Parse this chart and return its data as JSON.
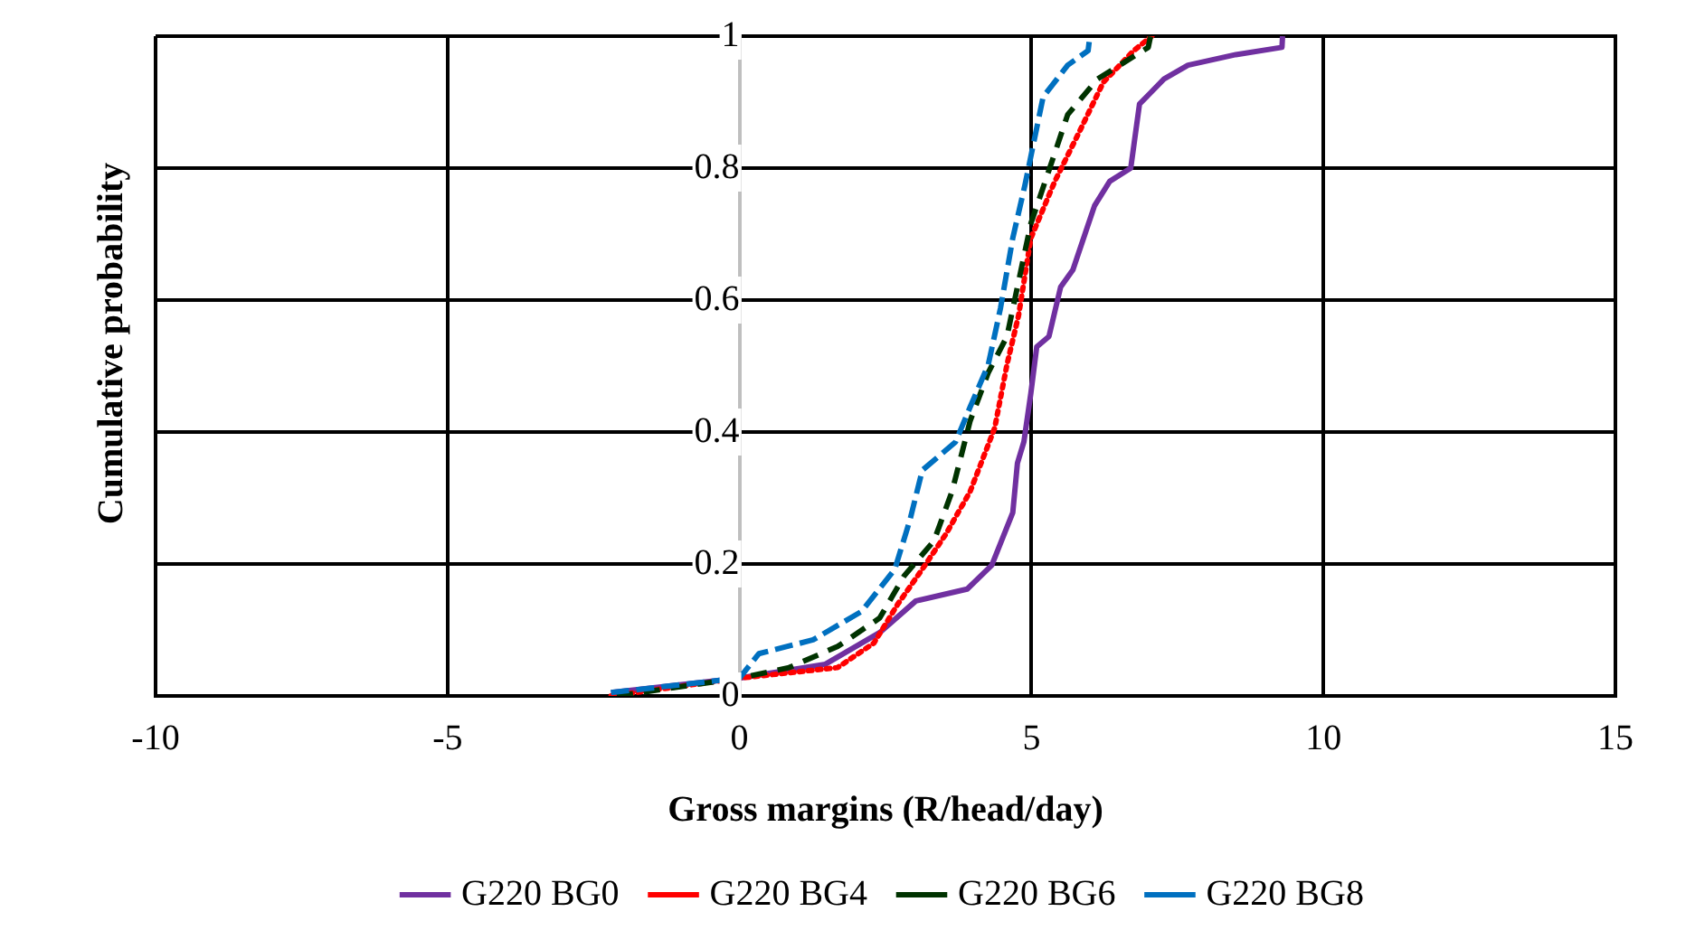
{
  "chart_data": {
    "type": "line",
    "xlabel": "Gross margins (R/head/day)",
    "ylabel": "Cumulative probability",
    "xlim": [
      -10,
      15
    ],
    "xticks": [
      -10,
      -5,
      0,
      5,
      10,
      15
    ],
    "ylim": [
      0,
      1
    ],
    "yticks": [
      0,
      0.2,
      0.4,
      0.6,
      0.8,
      1
    ],
    "grid": true,
    "legend": "bottom",
    "marker": "none",
    "series": [
      {
        "name": "G220 BG0",
        "color": "#7030a0",
        "line_style": "solid",
        "x": [
          -2.2,
          0,
          1.47,
          2.4,
          3.02,
          3.9,
          4.32,
          4.68,
          4.76,
          4.87,
          4.99,
          5.09,
          5.3,
          5.5,
          5.71,
          6.08,
          6.34,
          6.7,
          6.85,
          7.27,
          7.68,
          8.5,
          9.29,
          9.3
        ],
        "values": [
          0.005,
          0.027,
          0.048,
          0.096,
          0.144,
          0.162,
          0.198,
          0.278,
          0.353,
          0.385,
          0.459,
          0.529,
          0.545,
          0.62,
          0.646,
          0.743,
          0.78,
          0.8,
          0.897,
          0.935,
          0.956,
          0.972,
          0.983,
          1
        ]
      },
      {
        "name": "G220 BG4",
        "color": "#ff0000",
        "line_style": "dotted",
        "x": [
          -2.2,
          0,
          1.68,
          2.3,
          2.71,
          3.13,
          3.54,
          3.95,
          4.37,
          4.58,
          4.78,
          4.99,
          5.4,
          5.82,
          6.23,
          6.75,
          7.06
        ],
        "values": [
          0,
          0.027,
          0.043,
          0.08,
          0.139,
          0.192,
          0.246,
          0.31,
          0.406,
          0.502,
          0.577,
          0.694,
          0.78,
          0.855,
          0.93,
          0.978,
          1
        ]
      },
      {
        "name": "G220 BG6",
        "color": "#003300",
        "line_style": "dashed",
        "x": [
          -2.1,
          0,
          0.85,
          1.68,
          2.4,
          2.82,
          3.33,
          3.64,
          3.95,
          4.26,
          4.58,
          4.99,
          5.4,
          5.62,
          6.13,
          7.0,
          7.04
        ],
        "values": [
          0,
          0.027,
          0.043,
          0.075,
          0.118,
          0.182,
          0.235,
          0.31,
          0.417,
          0.49,
          0.545,
          0.716,
          0.823,
          0.881,
          0.935,
          0.983,
          1
        ]
      },
      {
        "name": "G220 BG8",
        "color": "#0070c0",
        "line_style": "longdash",
        "x": [
          -2.2,
          0,
          0.33,
          1.26,
          2.09,
          2.66,
          2.92,
          3.13,
          3.7,
          3.95,
          4.26,
          4.47,
          4.68,
          4.89,
          5.2,
          5.62,
          5.97,
          6.0
        ],
        "values": [
          0.005,
          0.027,
          0.064,
          0.085,
          0.128,
          0.192,
          0.267,
          0.342,
          0.385,
          0.438,
          0.502,
          0.588,
          0.694,
          0.775,
          0.908,
          0.956,
          0.978,
          1
        ]
      }
    ]
  }
}
